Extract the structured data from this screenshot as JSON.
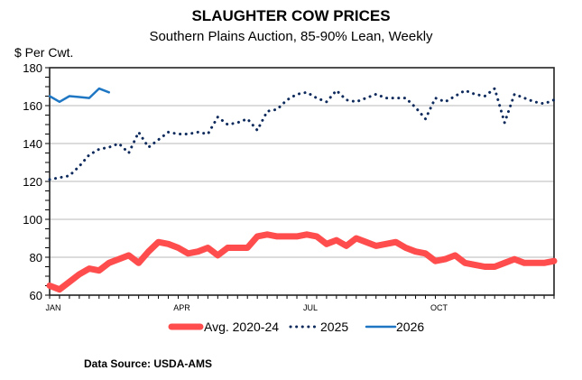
{
  "chart_data": {
    "type": "line",
    "title": "SLAUGHTER COW PRICES",
    "subtitle": "Southern Plains Auction, 85-90% Lean, Weekly",
    "ylabel": "$ Per Cwt.",
    "xlabel": "",
    "ylim": [
      60,
      180
    ],
    "yticks": [
      60,
      80,
      100,
      120,
      140,
      160,
      180
    ],
    "xticks": [
      {
        "label": "JAN",
        "week": 1
      },
      {
        "label": "APR",
        "week": 14
      },
      {
        "label": "JUL",
        "week": 27
      },
      {
        "label": "OCT",
        "week": 40
      }
    ],
    "x_weeks": 52,
    "grid": true,
    "legend_position": "bottom",
    "series": [
      {
        "name": "Avg. 2020-24",
        "color": "#ff4d4d",
        "style": "thick-solid",
        "values": [
          65,
          63,
          67,
          71,
          74,
          73,
          77,
          79,
          81,
          77,
          83,
          88,
          87,
          85,
          82,
          83,
          85,
          81,
          85,
          85,
          85,
          91,
          92,
          91,
          91,
          91,
          92,
          91,
          87,
          89,
          86,
          90,
          88,
          86,
          87,
          88,
          85,
          83,
          82,
          78,
          79,
          81,
          77,
          76,
          75,
          75,
          77,
          79,
          77,
          77,
          77,
          78
        ]
      },
      {
        "name": "2025",
        "color": "#0d2a5c",
        "style": "dotted",
        "values": [
          121,
          122,
          123,
          128,
          134,
          137,
          138,
          140,
          135,
          146,
          138,
          142,
          146,
          145,
          145,
          146,
          145,
          154,
          150,
          151,
          153,
          147,
          157,
          158,
          163,
          166,
          167,
          164,
          162,
          168,
          163,
          162,
          164,
          166,
          164,
          164,
          164,
          159,
          153,
          164,
          162,
          165,
          168,
          166,
          165,
          169,
          151,
          166,
          164,
          162,
          161,
          163
        ]
      },
      {
        "name": "2026",
        "color": "#1f77c4",
        "style": "solid",
        "values": [
          165,
          162,
          165,
          164.5,
          164,
          169,
          167
        ]
      }
    ]
  },
  "source": "Data Source:  USDA-AMS"
}
